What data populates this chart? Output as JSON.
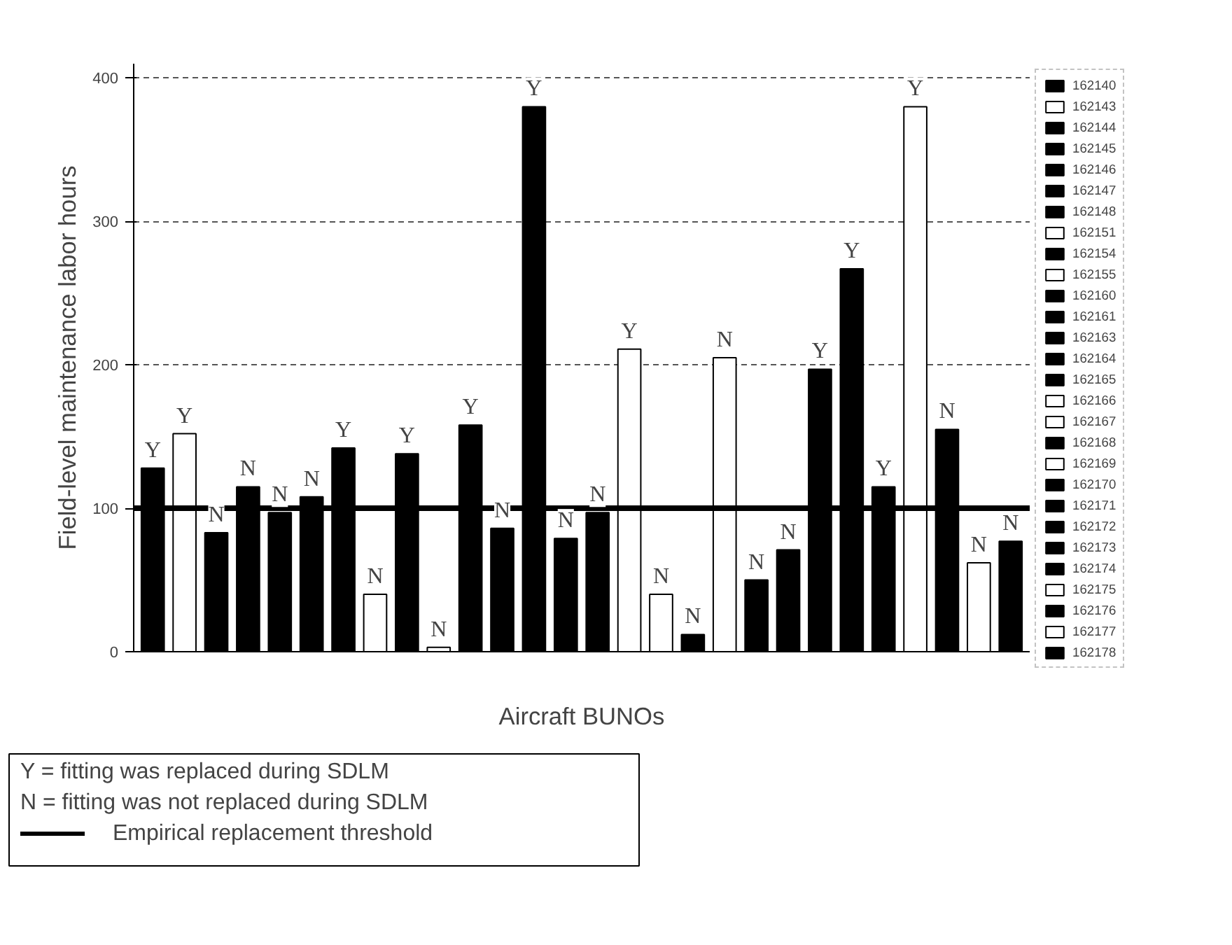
{
  "chart_data": {
    "type": "bar",
    "ylabel": "Field-level maintenance labor hours",
    "xlabel": "Aircraft BUNOs",
    "categories": [
      null,
      null,
      null,
      null,
      null,
      null,
      null,
      null,
      null,
      null,
      null,
      null,
      null,
      null,
      null,
      null,
      null,
      null,
      null,
      null,
      null,
      null,
      null,
      null,
      null,
      null,
      null,
      null
    ],
    "ylim": [
      0,
      410
    ],
    "yticks": [
      0,
      100,
      200,
      300,
      400
    ],
    "grid": "y",
    "legend": "right",
    "tick_labels": "y",
    "series": [
      {
        "name": "162140",
        "color": "#000000",
        "values": [
          128,
          null,
          null,
          null,
          null,
          null,
          null,
          null,
          null,
          null,
          null,
          null,
          null,
          null,
          null,
          null,
          null,
          null,
          null,
          null,
          null,
          null,
          null,
          null,
          null,
          null,
          null,
          null
        ],
        "value_labels": [
          "Y",
          null,
          null,
          null,
          null,
          null,
          null,
          null,
          null,
          null,
          null,
          null,
          null,
          null,
          null,
          null,
          null,
          null,
          null,
          null,
          null,
          null,
          null,
          null,
          null,
          null,
          null,
          null
        ]
      },
      {
        "name": "162143",
        "color": "#ffffff",
        "values": [
          null,
          152,
          null,
          null,
          null,
          null,
          null,
          null,
          null,
          null,
          null,
          null,
          null,
          null,
          null,
          null,
          null,
          null,
          null,
          null,
          null,
          null,
          null,
          null,
          null,
          null,
          null,
          null
        ],
        "value_labels": [
          null,
          "Y",
          null,
          null,
          null,
          null,
          null,
          null,
          null,
          null,
          null,
          null,
          null,
          null,
          null,
          null,
          null,
          null,
          null,
          null,
          null,
          null,
          null,
          null,
          null,
          null,
          null,
          null
        ]
      },
      {
        "name": "162144",
        "color": "#000000",
        "values": [
          null,
          null,
          83,
          null,
          null,
          null,
          null,
          null,
          null,
          null,
          null,
          null,
          null,
          null,
          null,
          null,
          null,
          null,
          null,
          null,
          null,
          null,
          null,
          null,
          null,
          null,
          null,
          null
        ],
        "value_labels": [
          null,
          null,
          "N",
          null,
          null,
          null,
          null,
          null,
          null,
          null,
          null,
          null,
          null,
          null,
          null,
          null,
          null,
          null,
          null,
          null,
          null,
          null,
          null,
          null,
          null,
          null,
          null,
          null
        ]
      },
      {
        "name": "162145",
        "color": "#000000",
        "values": [
          null,
          null,
          null,
          115,
          null,
          null,
          null,
          null,
          null,
          null,
          null,
          null,
          null,
          null,
          null,
          null,
          null,
          null,
          null,
          null,
          null,
          null,
          null,
          null,
          null,
          null,
          null,
          null
        ],
        "value_labels": [
          null,
          null,
          null,
          "N",
          null,
          null,
          null,
          null,
          null,
          null,
          null,
          null,
          null,
          null,
          null,
          null,
          null,
          null,
          null,
          null,
          null,
          null,
          null,
          null,
          null,
          null,
          null,
          null
        ]
      },
      {
        "name": "162146",
        "color": "#000000",
        "values": [
          null,
          null,
          null,
          null,
          97,
          null,
          null,
          null,
          null,
          null,
          null,
          null,
          null,
          null,
          null,
          null,
          null,
          null,
          null,
          null,
          null,
          null,
          null,
          null,
          null,
          null,
          null,
          null
        ],
        "value_labels": [
          null,
          null,
          null,
          null,
          "N",
          null,
          null,
          null,
          null,
          null,
          null,
          null,
          null,
          null,
          null,
          null,
          null,
          null,
          null,
          null,
          null,
          null,
          null,
          null,
          null,
          null,
          null,
          null
        ]
      },
      {
        "name": "162147",
        "color": "#000000",
        "values": [
          null,
          null,
          null,
          null,
          null,
          108,
          null,
          null,
          null,
          null,
          null,
          null,
          null,
          null,
          null,
          null,
          null,
          null,
          null,
          null,
          null,
          null,
          null,
          null,
          null,
          null,
          null,
          null
        ],
        "value_labels": [
          null,
          null,
          null,
          null,
          null,
          "N",
          null,
          null,
          null,
          null,
          null,
          null,
          null,
          null,
          null,
          null,
          null,
          null,
          null,
          null,
          null,
          null,
          null,
          null,
          null,
          null,
          null,
          null
        ]
      },
      {
        "name": "162148",
        "color": "#000000",
        "values": [
          null,
          null,
          null,
          null,
          null,
          null,
          142,
          null,
          null,
          null,
          null,
          null,
          null,
          null,
          null,
          null,
          null,
          null,
          null,
          null,
          null,
          null,
          null,
          null,
          null,
          null,
          null,
          null
        ],
        "value_labels": [
          null,
          null,
          null,
          null,
          null,
          null,
          "Y",
          null,
          null,
          null,
          null,
          null,
          null,
          null,
          null,
          null,
          null,
          null,
          null,
          null,
          null,
          null,
          null,
          null,
          null,
          null,
          null,
          null
        ]
      },
      {
        "name": "162151",
        "color": "#ffffff",
        "values": [
          null,
          null,
          null,
          null,
          null,
          null,
          null,
          40,
          null,
          null,
          null,
          null,
          null,
          null,
          null,
          null,
          null,
          null,
          null,
          null,
          null,
          null,
          null,
          null,
          null,
          null,
          null,
          null
        ],
        "value_labels": [
          null,
          null,
          null,
          null,
          null,
          null,
          null,
          "N",
          null,
          null,
          null,
          null,
          null,
          null,
          null,
          null,
          null,
          null,
          null,
          null,
          null,
          null,
          null,
          null,
          null,
          null,
          null,
          null
        ]
      },
      {
        "name": "162154",
        "color": "#000000",
        "values": [
          null,
          null,
          null,
          null,
          null,
          null,
          null,
          null,
          138,
          null,
          null,
          null,
          null,
          null,
          null,
          null,
          null,
          null,
          null,
          null,
          null,
          null,
          null,
          null,
          null,
          null,
          null,
          null
        ],
        "value_labels": [
          null,
          null,
          null,
          null,
          null,
          null,
          null,
          null,
          "Y",
          null,
          null,
          null,
          null,
          null,
          null,
          null,
          null,
          null,
          null,
          null,
          null,
          null,
          null,
          null,
          null,
          null,
          null,
          null
        ]
      },
      {
        "name": "162155",
        "color": "#ffffff",
        "values": [
          null,
          null,
          null,
          null,
          null,
          null,
          null,
          null,
          null,
          3,
          null,
          null,
          null,
          null,
          null,
          null,
          null,
          null,
          null,
          null,
          null,
          null,
          null,
          null,
          null,
          null,
          null,
          null
        ],
        "value_labels": [
          null,
          null,
          null,
          null,
          null,
          null,
          null,
          null,
          null,
          "N",
          null,
          null,
          null,
          null,
          null,
          null,
          null,
          null,
          null,
          null,
          null,
          null,
          null,
          null,
          null,
          null,
          null,
          null
        ]
      },
      {
        "name": "162160",
        "color": "#000000",
        "values": [
          null,
          null,
          null,
          null,
          null,
          null,
          null,
          null,
          null,
          null,
          158,
          null,
          null,
          null,
          null,
          null,
          null,
          null,
          null,
          null,
          null,
          null,
          null,
          null,
          null,
          null,
          null,
          null
        ],
        "value_labels": [
          null,
          null,
          null,
          null,
          null,
          null,
          null,
          null,
          null,
          null,
          "Y",
          null,
          null,
          null,
          null,
          null,
          null,
          null,
          null,
          null,
          null,
          null,
          null,
          null,
          null,
          null,
          null,
          null
        ]
      },
      {
        "name": "162161",
        "color": "#000000",
        "values": [
          null,
          null,
          null,
          null,
          null,
          null,
          null,
          null,
          null,
          null,
          null,
          86,
          null,
          null,
          null,
          null,
          null,
          null,
          null,
          null,
          null,
          null,
          null,
          null,
          null,
          null,
          null,
          null
        ],
        "value_labels": [
          null,
          null,
          null,
          null,
          null,
          null,
          null,
          null,
          null,
          null,
          null,
          "N",
          null,
          null,
          null,
          null,
          null,
          null,
          null,
          null,
          null,
          null,
          null,
          null,
          null,
          null,
          null,
          null
        ]
      },
      {
        "name": "162163",
        "color": "#000000",
        "values": [
          null,
          null,
          null,
          null,
          null,
          null,
          null,
          null,
          null,
          null,
          null,
          null,
          380,
          null,
          null,
          null,
          null,
          null,
          null,
          null,
          null,
          null,
          null,
          null,
          null,
          null,
          null,
          null
        ],
        "value_labels": [
          null,
          null,
          null,
          null,
          null,
          null,
          null,
          null,
          null,
          null,
          null,
          null,
          "Y",
          null,
          null,
          null,
          null,
          null,
          null,
          null,
          null,
          null,
          null,
          null,
          null,
          null,
          null,
          null
        ]
      },
      {
        "name": "162164",
        "color": "#000000",
        "values": [
          null,
          null,
          null,
          null,
          null,
          null,
          null,
          null,
          null,
          null,
          null,
          null,
          null,
          79,
          null,
          null,
          null,
          null,
          null,
          null,
          null,
          null,
          null,
          null,
          null,
          null,
          null,
          null
        ],
        "value_labels": [
          null,
          null,
          null,
          null,
          null,
          null,
          null,
          null,
          null,
          null,
          null,
          null,
          null,
          "N",
          null,
          null,
          null,
          null,
          null,
          null,
          null,
          null,
          null,
          null,
          null,
          null,
          null,
          null
        ]
      },
      {
        "name": "162165",
        "color": "#000000",
        "values": [
          null,
          null,
          null,
          null,
          null,
          null,
          null,
          null,
          null,
          null,
          null,
          null,
          null,
          null,
          97,
          null,
          null,
          null,
          null,
          null,
          null,
          null,
          null,
          null,
          null,
          null,
          null,
          null
        ],
        "value_labels": [
          null,
          null,
          null,
          null,
          null,
          null,
          null,
          null,
          null,
          null,
          null,
          null,
          null,
          null,
          "N",
          null,
          null,
          null,
          null,
          null,
          null,
          null,
          null,
          null,
          null,
          null,
          null,
          null
        ]
      },
      {
        "name": "162166",
        "color": "#ffffff",
        "values": [
          null,
          null,
          null,
          null,
          null,
          null,
          null,
          null,
          null,
          null,
          null,
          null,
          null,
          null,
          null,
          211,
          null,
          null,
          null,
          null,
          null,
          null,
          null,
          null,
          null,
          null,
          null,
          null
        ],
        "value_labels": [
          null,
          null,
          null,
          null,
          null,
          null,
          null,
          null,
          null,
          null,
          null,
          null,
          null,
          null,
          null,
          "Y",
          null,
          null,
          null,
          null,
          null,
          null,
          null,
          null,
          null,
          null,
          null,
          null
        ]
      },
      {
        "name": "162167",
        "color": "#ffffff",
        "values": [
          null,
          null,
          null,
          null,
          null,
          null,
          null,
          null,
          null,
          null,
          null,
          null,
          null,
          null,
          null,
          null,
          40,
          null,
          null,
          null,
          null,
          null,
          null,
          null,
          null,
          null,
          null,
          null
        ],
        "value_labels": [
          null,
          null,
          null,
          null,
          null,
          null,
          null,
          null,
          null,
          null,
          null,
          null,
          null,
          null,
          null,
          null,
          "N",
          null,
          null,
          null,
          null,
          null,
          null,
          null,
          null,
          null,
          null,
          null
        ]
      },
      {
        "name": "162168",
        "color": "#000000",
        "values": [
          null,
          null,
          null,
          null,
          null,
          null,
          null,
          null,
          null,
          null,
          null,
          null,
          null,
          null,
          null,
          null,
          null,
          12,
          null,
          null,
          null,
          null,
          null,
          null,
          null,
          null,
          null,
          null
        ],
        "value_labels": [
          null,
          null,
          null,
          null,
          null,
          null,
          null,
          null,
          null,
          null,
          null,
          null,
          null,
          null,
          null,
          null,
          null,
          "N",
          null,
          null,
          null,
          null,
          null,
          null,
          null,
          null,
          null,
          null
        ]
      },
      {
        "name": "162169",
        "color": "#ffffff",
        "values": [
          null,
          null,
          null,
          null,
          null,
          null,
          null,
          null,
          null,
          null,
          null,
          null,
          null,
          null,
          null,
          null,
          null,
          null,
          205,
          null,
          null,
          null,
          null,
          null,
          null,
          null,
          null,
          null
        ],
        "value_labels": [
          null,
          null,
          null,
          null,
          null,
          null,
          null,
          null,
          null,
          null,
          null,
          null,
          null,
          null,
          null,
          null,
          null,
          null,
          "N",
          null,
          null,
          null,
          null,
          null,
          null,
          null,
          null,
          null
        ]
      },
      {
        "name": "162170",
        "color": "#000000",
        "values": [
          null,
          null,
          null,
          null,
          null,
          null,
          null,
          null,
          null,
          null,
          null,
          null,
          null,
          null,
          null,
          null,
          null,
          null,
          null,
          50,
          null,
          null,
          null,
          null,
          null,
          null,
          null,
          null
        ],
        "value_labels": [
          null,
          null,
          null,
          null,
          null,
          null,
          null,
          null,
          null,
          null,
          null,
          null,
          null,
          null,
          null,
          null,
          null,
          null,
          null,
          "N",
          null,
          null,
          null,
          null,
          null,
          null,
          null,
          null
        ]
      },
      {
        "name": "162171",
        "color": "#000000",
        "values": [
          null,
          null,
          null,
          null,
          null,
          null,
          null,
          null,
          null,
          null,
          null,
          null,
          null,
          null,
          null,
          null,
          null,
          null,
          null,
          null,
          71,
          null,
          null,
          null,
          null,
          null,
          null,
          null
        ],
        "value_labels": [
          null,
          null,
          null,
          null,
          null,
          null,
          null,
          null,
          null,
          null,
          null,
          null,
          null,
          null,
          null,
          null,
          null,
          null,
          null,
          null,
          "N",
          null,
          null,
          null,
          null,
          null,
          null,
          null
        ]
      },
      {
        "name": "162172",
        "color": "#000000",
        "values": [
          null,
          null,
          null,
          null,
          null,
          null,
          null,
          null,
          null,
          null,
          null,
          null,
          null,
          null,
          null,
          null,
          null,
          null,
          null,
          null,
          null,
          197,
          null,
          null,
          null,
          null,
          null,
          null
        ],
        "value_labels": [
          null,
          null,
          null,
          null,
          null,
          null,
          null,
          null,
          null,
          null,
          null,
          null,
          null,
          null,
          null,
          null,
          null,
          null,
          null,
          null,
          null,
          "Y",
          null,
          null,
          null,
          null,
          null,
          null
        ]
      },
      {
        "name": "162173",
        "color": "#000000",
        "values": [
          null,
          null,
          null,
          null,
          null,
          null,
          null,
          null,
          null,
          null,
          null,
          null,
          null,
          null,
          null,
          null,
          null,
          null,
          null,
          null,
          null,
          null,
          267,
          null,
          null,
          null,
          null,
          null
        ],
        "value_labels": [
          null,
          null,
          null,
          null,
          null,
          null,
          null,
          null,
          null,
          null,
          null,
          null,
          null,
          null,
          null,
          null,
          null,
          null,
          null,
          null,
          null,
          null,
          "Y",
          null,
          null,
          null,
          null,
          null
        ]
      },
      {
        "name": "162174",
        "color": "#000000",
        "values": [
          null,
          null,
          null,
          null,
          null,
          null,
          null,
          null,
          null,
          null,
          null,
          null,
          null,
          null,
          null,
          null,
          null,
          null,
          null,
          null,
          null,
          null,
          null,
          115,
          null,
          null,
          null,
          null
        ],
        "value_labels": [
          null,
          null,
          null,
          null,
          null,
          null,
          null,
          null,
          null,
          null,
          null,
          null,
          null,
          null,
          null,
          null,
          null,
          null,
          null,
          null,
          null,
          null,
          null,
          "Y",
          null,
          null,
          null,
          null
        ]
      },
      {
        "name": "162175",
        "color": "#ffffff",
        "values": [
          null,
          null,
          null,
          null,
          null,
          null,
          null,
          null,
          null,
          null,
          null,
          null,
          null,
          null,
          null,
          null,
          null,
          null,
          null,
          null,
          null,
          null,
          null,
          null,
          380,
          null,
          null,
          null
        ],
        "value_labels": [
          null,
          null,
          null,
          null,
          null,
          null,
          null,
          null,
          null,
          null,
          null,
          null,
          null,
          null,
          null,
          null,
          null,
          null,
          null,
          null,
          null,
          null,
          null,
          null,
          "Y",
          null,
          null,
          null
        ]
      },
      {
        "name": "162176",
        "color": "#000000",
        "values": [
          null,
          null,
          null,
          null,
          null,
          null,
          null,
          null,
          null,
          null,
          null,
          null,
          null,
          null,
          null,
          null,
          null,
          null,
          null,
          null,
          null,
          null,
          null,
          null,
          null,
          155,
          null,
          null
        ],
        "value_labels": [
          null,
          null,
          null,
          null,
          null,
          null,
          null,
          null,
          null,
          null,
          null,
          null,
          null,
          null,
          null,
          null,
          null,
          null,
          null,
          null,
          null,
          null,
          null,
          null,
          null,
          "N",
          null,
          null
        ]
      },
      {
        "name": "162177",
        "color": "#ffffff",
        "values": [
          null,
          null,
          null,
          null,
          null,
          null,
          null,
          null,
          null,
          null,
          null,
          null,
          null,
          null,
          null,
          null,
          null,
          null,
          null,
          null,
          null,
          null,
          null,
          null,
          null,
          null,
          62,
          null
        ],
        "value_labels": [
          null,
          null,
          null,
          null,
          null,
          null,
          null,
          null,
          null,
          null,
          null,
          null,
          null,
          null,
          null,
          null,
          null,
          null,
          null,
          null,
          null,
          null,
          null,
          null,
          null,
          null,
          "N",
          null
        ]
      },
      {
        "name": "162178",
        "color": "#000000",
        "values": [
          null,
          null,
          null,
          null,
          null,
          null,
          null,
          null,
          null,
          null,
          null,
          null,
          null,
          null,
          null,
          null,
          null,
          null,
          null,
          null,
          null,
          null,
          null,
          null,
          null,
          null,
          null,
          77
        ],
        "value_labels": [
          null,
          null,
          null,
          null,
          null,
          null,
          null,
          null,
          null,
          null,
          null,
          null,
          null,
          null,
          null,
          null,
          null,
          null,
          null,
          null,
          null,
          null,
          null,
          null,
          null,
          null,
          null,
          "N"
        ]
      }
    ],
    "ref_lines": [
      {
        "axis": "y",
        "value": 100,
        "label": "Empirical replacement threshold",
        "color": "#000000"
      }
    ],
    "annotations": [
      "Y = fitting was replaced during SDLM",
      "N = fitting was not replaced during SDLM"
    ]
  }
}
